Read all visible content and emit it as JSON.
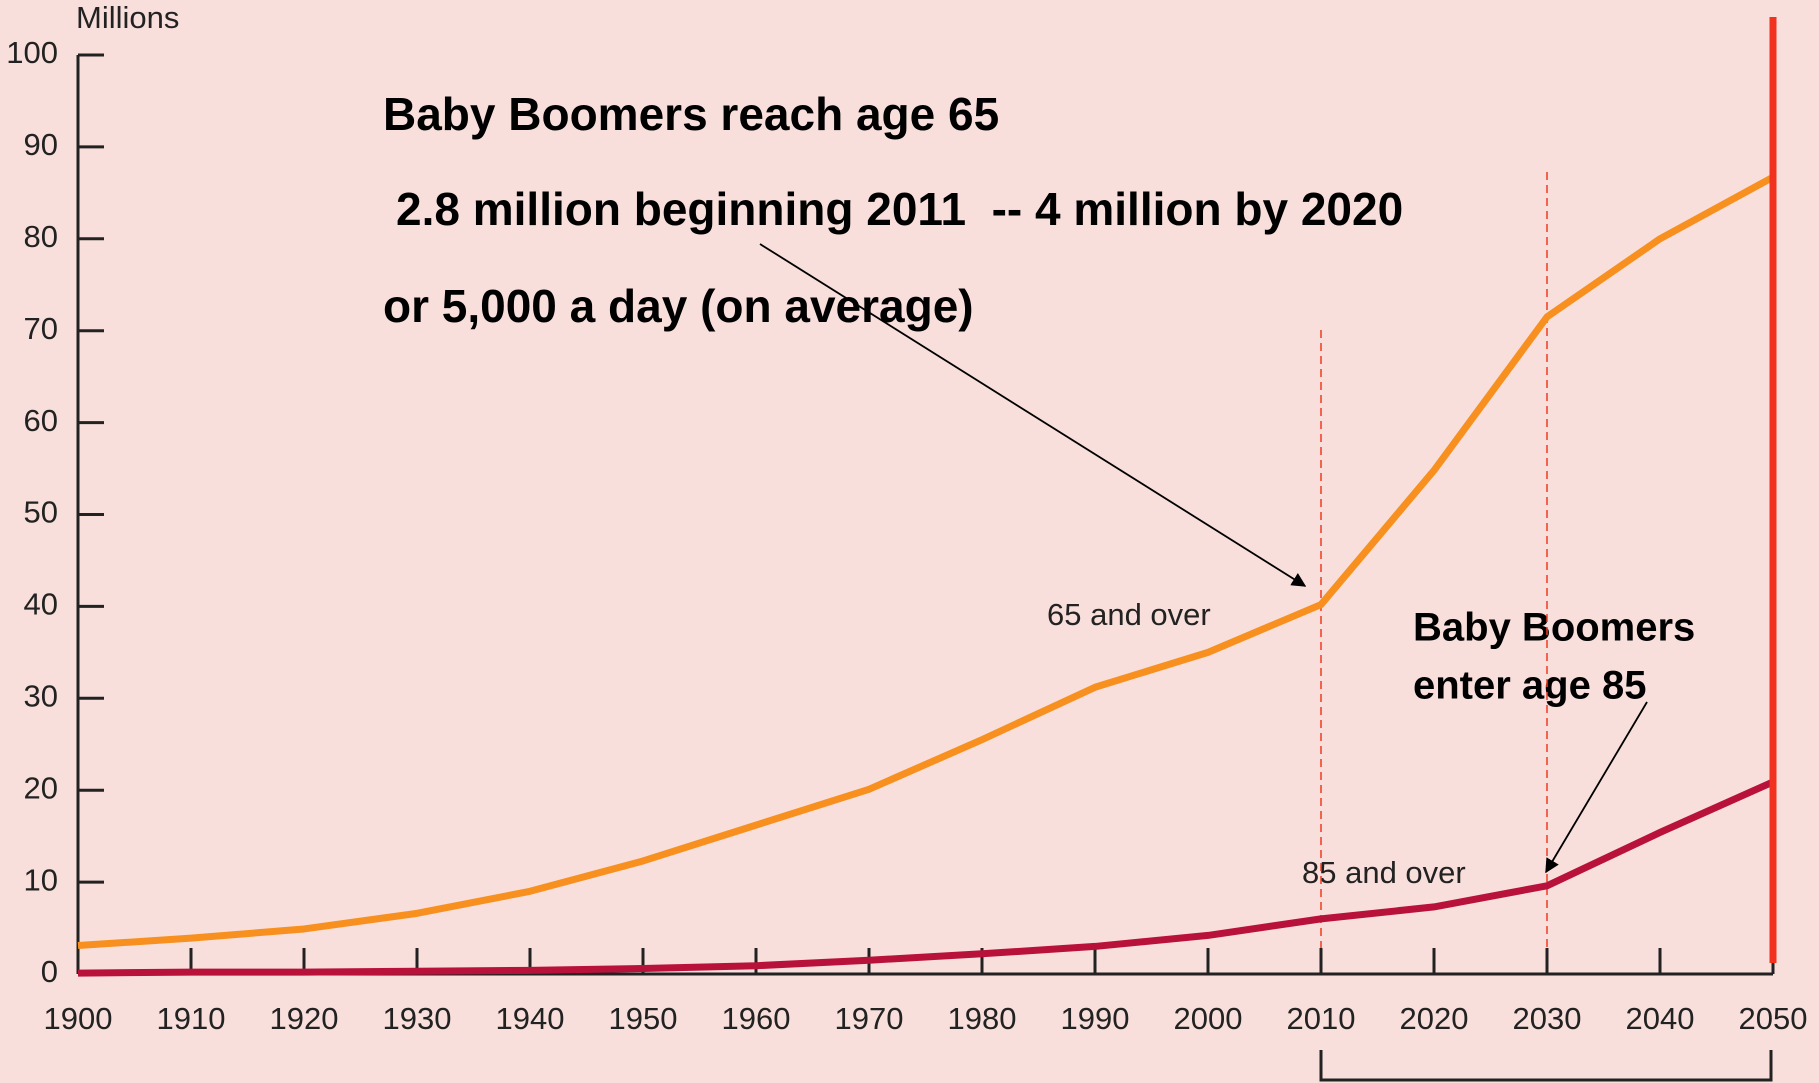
{
  "chart_data": {
    "type": "line",
    "y_label": "Millions",
    "annotations": [
      "Baby Boomers reach age 65",
      "2.8 million beginning 2011  -- 4 million by 2020",
      "or 5,000 a day (on average)",
      "Baby Boomers",
      "enter age 85"
    ],
    "x": [
      1900,
      1910,
      1920,
      1930,
      1940,
      1950,
      1960,
      1970,
      1980,
      1990,
      2000,
      2010,
      2020,
      2030,
      2040,
      2050
    ],
    "series": [
      {
        "name": "65 and over",
        "color": "#f7901e",
        "values": [
          3.1,
          3.9,
          4.9,
          6.6,
          9.0,
          12.3,
          16.2,
          20.1,
          25.5,
          31.2,
          35.0,
          40.2,
          54.8,
          71.5,
          80.0,
          86.7
        ]
      },
      {
        "name": "85 and over",
        "color": "#b8123a",
        "values": [
          0.1,
          0.2,
          0.2,
          0.3,
          0.4,
          0.6,
          0.9,
          1.5,
          2.2,
          3.0,
          4.2,
          6.0,
          7.3,
          9.6,
          15.4,
          20.9
        ]
      }
    ],
    "xlim": [
      1900,
      2050
    ],
    "ylim": [
      0,
      100
    ],
    "xticks": [
      1900,
      1910,
      1920,
      1930,
      1940,
      1950,
      1960,
      1970,
      1980,
      1990,
      2000,
      2010,
      2020,
      2030,
      2040,
      2050
    ],
    "yticks": [
      0,
      10,
      20,
      30,
      40,
      50,
      60,
      70,
      80,
      90,
      100
    ]
  }
}
